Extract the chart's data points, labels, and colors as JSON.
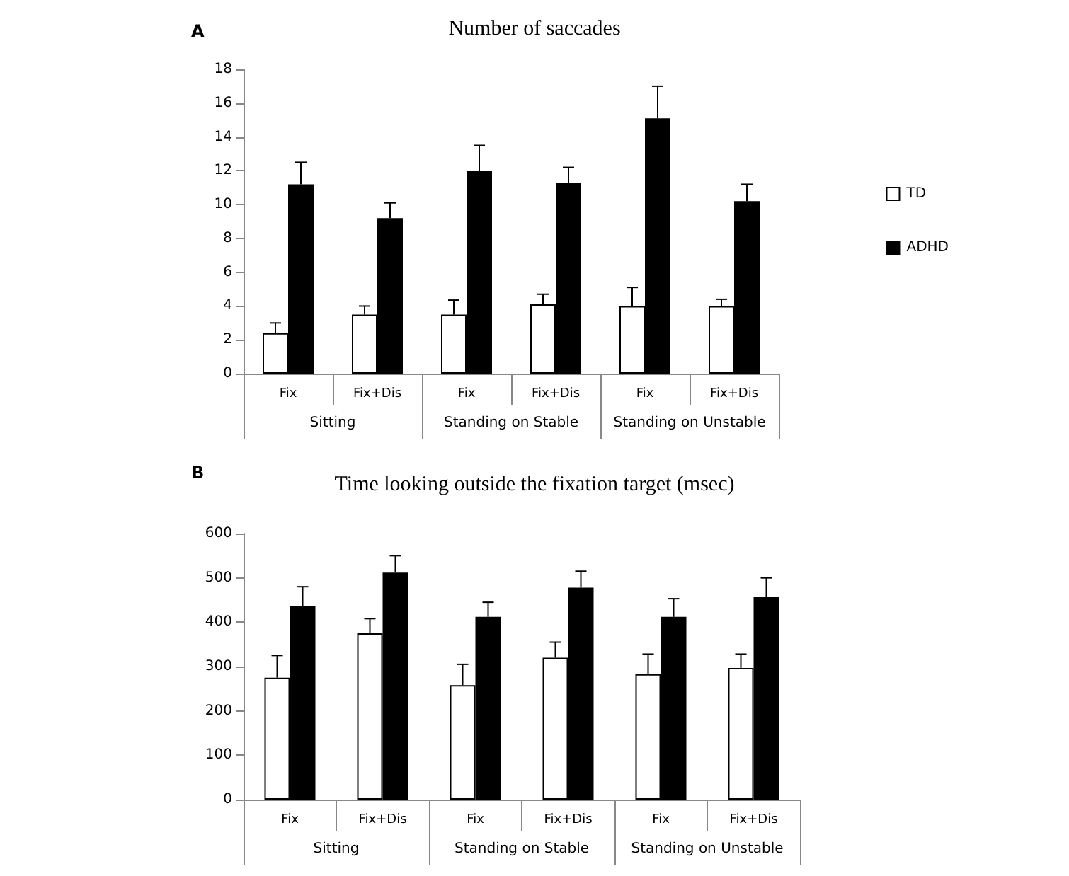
{
  "chart_data": [
    {
      "type": "bar",
      "title": "Number of saccades",
      "annotations": [
        "A",
        "Sitting",
        "Standing on Stable",
        "Standing on Unstable"
      ],
      "categories": [
        "Fix",
        "Fix+Dis",
        "Fix",
        "Fix+Dis",
        "Fix",
        "Fix+Dis"
      ],
      "series": [
        {
          "name": "TD",
          "color": "#ffffff",
          "values": [
            2.4,
            3.5,
            3.5,
            4.1,
            4.0,
            4.0
          ],
          "errors": [
            [
              2.4,
              3.0
            ],
            [
              3.5,
              4.0
            ],
            [
              3.5,
              4.35
            ],
            [
              4.1,
              4.7
            ],
            [
              4.0,
              5.1
            ],
            [
              4.0,
              4.4
            ]
          ]
        },
        {
          "name": "ADHD",
          "color": "#000000",
          "values": [
            11.2,
            9.2,
            12.0,
            11.3,
            15.1,
            10.2
          ],
          "errors": [
            [
              11.2,
              12.5
            ],
            [
              9.2,
              10.1
            ],
            [
              12.0,
              13.5
            ],
            [
              11.3,
              12.2
            ],
            [
              15.1,
              17.0
            ],
            [
              10.2,
              11.2
            ]
          ]
        }
      ],
      "ylim": [
        0,
        18
      ],
      "yticks": [
        0,
        2,
        4,
        6,
        8,
        10,
        12,
        14,
        16,
        18
      ],
      "grid": false,
      "legend": "right"
    },
    {
      "type": "bar",
      "title": "Time looking outside the fixation target (msec)",
      "annotations": [
        "B",
        "Sitting",
        "Standing on Stable",
        "Standing on Unstable"
      ],
      "categories": [
        "Fix",
        "Fix+Dis",
        "Fix",
        "Fix+Dis",
        "Fix",
        "Fix+Dis"
      ],
      "series": [
        {
          "color": "#ffffff",
          "values": [
            275,
            375,
            258,
            320,
            283,
            297
          ],
          "errors": [
            [
              275,
              325
            ],
            [
              375,
              408
            ],
            [
              258,
              305
            ],
            [
              320,
              355
            ],
            [
              283,
              328
            ],
            [
              297,
              328
            ]
          ]
        },
        {
          "color": "#000000",
          "values": [
            437,
            512,
            412,
            478,
            412,
            458
          ],
          "errors": [
            [
              437,
              480
            ],
            [
              512,
              550
            ],
            [
              412,
              445
            ],
            [
              478,
              515
            ],
            [
              412,
              453
            ],
            [
              458,
              500
            ]
          ]
        }
      ],
      "ylim": [
        0,
        600
      ],
      "yticks": [
        0,
        100,
        200,
        300,
        400,
        500,
        600
      ],
      "grid": false
    }
  ]
}
